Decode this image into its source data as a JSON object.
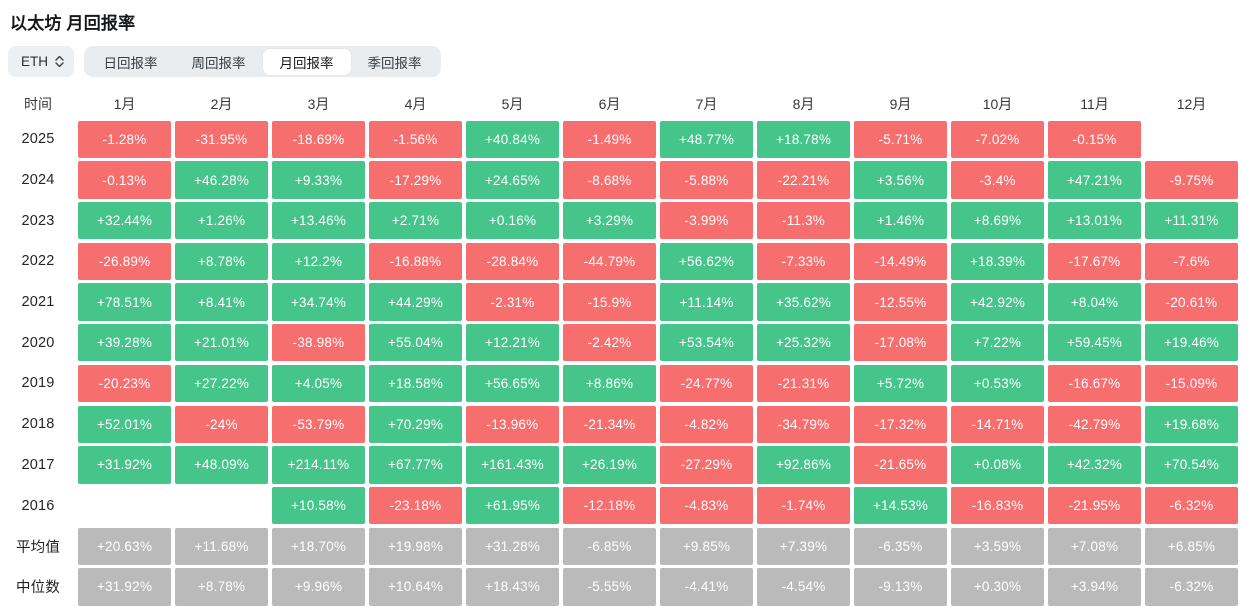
{
  "title": "以太坊 月回报率",
  "selector": {
    "label": "ETH"
  },
  "tabs": [
    {
      "label": "日回报率",
      "active": false
    },
    {
      "label": "周回报率",
      "active": false
    },
    {
      "label": "月回报率",
      "active": true
    },
    {
      "label": "季回报率",
      "active": false
    }
  ],
  "colors": {
    "positive": "#45C58A",
    "negative": "#F76E6E",
    "summary": "#BABABA",
    "tab_bar": "#e9edf0",
    "tab_active_bg": "#ffffff"
  },
  "table": {
    "corner": "时间",
    "months": [
      "1月",
      "2月",
      "3月",
      "4月",
      "5月",
      "6月",
      "7月",
      "8月",
      "9月",
      "10月",
      "11月",
      "12月"
    ],
    "rows": [
      {
        "label": "2025",
        "type": "year",
        "values": [
          "-1.28%",
          "-31.95%",
          "-18.69%",
          "-1.56%",
          "+40.84%",
          "-1.49%",
          "+48.77%",
          "+18.78%",
          "-5.71%",
          "-7.02%",
          "-0.15%",
          ""
        ]
      },
      {
        "label": "2024",
        "type": "year",
        "values": [
          "-0.13%",
          "+46.28%",
          "+9.33%",
          "-17.29%",
          "+24.65%",
          "-8.68%",
          "-5.88%",
          "-22.21%",
          "+3.56%",
          "-3.4%",
          "+47.21%",
          "-9.75%"
        ]
      },
      {
        "label": "2023",
        "type": "year",
        "values": [
          "+32.44%",
          "+1.26%",
          "+13.46%",
          "+2.71%",
          "+0.16%",
          "+3.29%",
          "-3.99%",
          "-11.3%",
          "+1.46%",
          "+8.69%",
          "+13.01%",
          "+11.31%"
        ]
      },
      {
        "label": "2022",
        "type": "year",
        "values": [
          "-26.89%",
          "+8.78%",
          "+12.2%",
          "-16.88%",
          "-28.84%",
          "-44.79%",
          "+56.62%",
          "-7.33%",
          "-14.49%",
          "+18.39%",
          "-17.67%",
          "-7.6%"
        ]
      },
      {
        "label": "2021",
        "type": "year",
        "values": [
          "+78.51%",
          "+8.41%",
          "+34.74%",
          "+44.29%",
          "-2.31%",
          "-15.9%",
          "+11.14%",
          "+35.62%",
          "-12.55%",
          "+42.92%",
          "+8.04%",
          "-20.61%"
        ]
      },
      {
        "label": "2020",
        "type": "year",
        "values": [
          "+39.28%",
          "+21.01%",
          "-38.98%",
          "+55.04%",
          "+12.21%",
          "-2.42%",
          "+53.54%",
          "+25.32%",
          "-17.08%",
          "+7.22%",
          "+59.45%",
          "+19.46%"
        ]
      },
      {
        "label": "2019",
        "type": "year",
        "values": [
          "-20.23%",
          "+27.22%",
          "+4.05%",
          "+18.58%",
          "+56.65%",
          "+8.86%",
          "-24.77%",
          "-21.31%",
          "+5.72%",
          "+0.53%",
          "-16.67%",
          "-15.09%"
        ]
      },
      {
        "label": "2018",
        "type": "year",
        "values": [
          "+52.01%",
          "-24%",
          "-53.79%",
          "+70.29%",
          "-13.96%",
          "-21.34%",
          "-4.82%",
          "-34.79%",
          "-17.32%",
          "-14.71%",
          "-42.79%",
          "+19.68%"
        ]
      },
      {
        "label": "2017",
        "type": "year",
        "values": [
          "+31.92%",
          "+48.09%",
          "+214.11%",
          "+67.77%",
          "+161.43%",
          "+26.19%",
          "-27.29%",
          "+92.86%",
          "-21.65%",
          "+0.08%",
          "+42.32%",
          "+70.54%"
        ]
      },
      {
        "label": "2016",
        "type": "year",
        "values": [
          "",
          "",
          "+10.58%",
          "-23.18%",
          "+61.95%",
          "-12.18%",
          "-4.83%",
          "-1.74%",
          "+14.53%",
          "-16.83%",
          "-21.95%",
          "-6.32%"
        ]
      },
      {
        "label": "平均值",
        "type": "summary",
        "values": [
          "+20.63%",
          "+11.68%",
          "+18.70%",
          "+19.98%",
          "+31.28%",
          "-6.85%",
          "+9.85%",
          "+7.39%",
          "-6.35%",
          "+3.59%",
          "+7.08%",
          "+6.85%"
        ]
      },
      {
        "label": "中位数",
        "type": "summary",
        "values": [
          "+31.92%",
          "+8.78%",
          "+9.96%",
          "+10.64%",
          "+18.43%",
          "-5.55%",
          "-4.41%",
          "-4.54%",
          "-9.13%",
          "+0.30%",
          "+3.94%",
          "-6.32%"
        ]
      }
    ]
  },
  "chart_data": {
    "type": "heatmap",
    "title": "以太坊 月回报率",
    "columns": [
      "1月",
      "2月",
      "3月",
      "4月",
      "5月",
      "6月",
      "7月",
      "8月",
      "9月",
      "10月",
      "11月",
      "12月"
    ],
    "unit": "%",
    "series": [
      {
        "name": "2025",
        "values": [
          -1.28,
          -31.95,
          -18.69,
          -1.56,
          40.84,
          -1.49,
          48.77,
          18.78,
          -5.71,
          -7.02,
          -0.15,
          null
        ]
      },
      {
        "name": "2024",
        "values": [
          -0.13,
          46.28,
          9.33,
          -17.29,
          24.65,
          -8.68,
          -5.88,
          -22.21,
          3.56,
          -3.4,
          47.21,
          -9.75
        ]
      },
      {
        "name": "2023",
        "values": [
          32.44,
          1.26,
          13.46,
          2.71,
          0.16,
          3.29,
          -3.99,
          -11.3,
          1.46,
          8.69,
          13.01,
          11.31
        ]
      },
      {
        "name": "2022",
        "values": [
          -26.89,
          8.78,
          12.2,
          -16.88,
          -28.84,
          -44.79,
          56.62,
          -7.33,
          -14.49,
          18.39,
          -17.67,
          -7.6
        ]
      },
      {
        "name": "2021",
        "values": [
          78.51,
          8.41,
          34.74,
          44.29,
          -2.31,
          -15.9,
          11.14,
          35.62,
          -12.55,
          42.92,
          8.04,
          -20.61
        ]
      },
      {
        "name": "2020",
        "values": [
          39.28,
          21.01,
          -38.98,
          55.04,
          12.21,
          -2.42,
          53.54,
          25.32,
          -17.08,
          7.22,
          59.45,
          19.46
        ]
      },
      {
        "name": "2019",
        "values": [
          -20.23,
          27.22,
          4.05,
          18.58,
          56.65,
          8.86,
          -24.77,
          -21.31,
          5.72,
          0.53,
          -16.67,
          -15.09
        ]
      },
      {
        "name": "2018",
        "values": [
          52.01,
          -24,
          -53.79,
          70.29,
          -13.96,
          -21.34,
          -4.82,
          -34.79,
          -17.32,
          -14.71,
          -42.79,
          19.68
        ]
      },
      {
        "name": "2017",
        "values": [
          31.92,
          48.09,
          214.11,
          67.77,
          161.43,
          26.19,
          -27.29,
          92.86,
          -21.65,
          0.08,
          42.32,
          70.54
        ]
      },
      {
        "name": "2016",
        "values": [
          null,
          null,
          10.58,
          -23.18,
          61.95,
          -12.18,
          -4.83,
          -1.74,
          14.53,
          -16.83,
          -21.95,
          -6.32
        ]
      },
      {
        "name": "平均值",
        "values": [
          20.63,
          11.68,
          18.7,
          19.98,
          31.28,
          -6.85,
          9.85,
          7.39,
          -6.35,
          3.59,
          7.08,
          6.85
        ]
      },
      {
        "name": "中位数",
        "values": [
          31.92,
          8.78,
          9.96,
          10.64,
          18.43,
          -5.55,
          -4.41,
          -4.54,
          -9.13,
          0.3,
          3.94,
          -6.32
        ]
      }
    ],
    "color_legend": {
      "positive": "green",
      "negative": "red",
      "summary_rows": "gray"
    }
  }
}
